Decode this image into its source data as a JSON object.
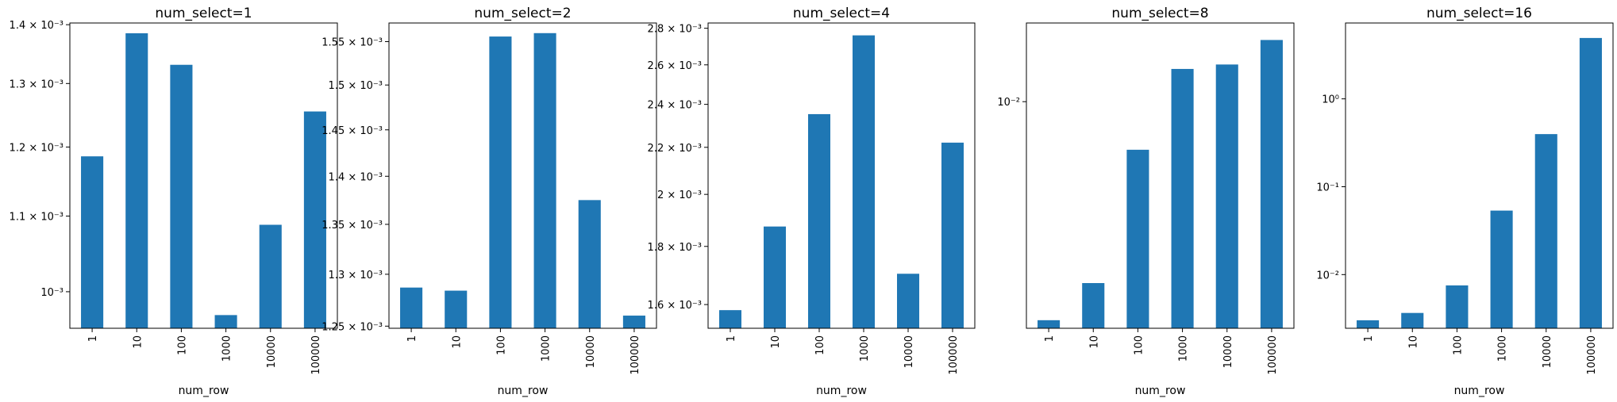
{
  "chart_data": [
    {
      "type": "bar",
      "title": "num_select=1",
      "xlabel": "num_row",
      "ylabel": "",
      "yscale": "log",
      "categories": [
        "1",
        "10",
        "100",
        "1000",
        "10000",
        "100000"
      ],
      "values": [
        0.001186,
        0.001385,
        0.001331,
        0.000971,
        0.001088,
        0.001255
      ],
      "ylim": [
        0.000955,
        0.001403
      ],
      "yticks": [
        {
          "value": 0.0011,
          "label": "1.1 × 10⁻³"
        },
        {
          "value": 0.0012,
          "label": "1.2 × 10⁻³"
        },
        {
          "value": 0.0013,
          "label": "1.3 × 10⁻³"
        },
        {
          "value": 0.0014,
          "label": "1.4 × 10⁻³"
        },
        {
          "value": 0.001,
          "label": "10⁻³"
        }
      ],
      "grid": false,
      "bar_color": "#1f77b4"
    },
    {
      "type": "bar",
      "title": "num_select=2",
      "xlabel": "num_row",
      "ylabel": "",
      "yscale": "log",
      "categories": [
        "1",
        "10",
        "100",
        "1000",
        "10000",
        "100000"
      ],
      "values": [
        0.001287,
        0.001284,
        0.001556,
        0.00156,
        0.001375,
        0.00126
      ],
      "ylim": [
        0.001248,
        0.001572
      ],
      "yticks": [
        {
          "value": 0.00125,
          "label": "1.25 × 10⁻³"
        },
        {
          "value": 0.0013,
          "label": "1.3 × 10⁻³"
        },
        {
          "value": 0.00135,
          "label": "1.35 × 10⁻³"
        },
        {
          "value": 0.0014,
          "label": "1.4 × 10⁻³"
        },
        {
          "value": 0.00145,
          "label": "1.45 × 10⁻³"
        },
        {
          "value": 0.0015,
          "label": "1.5 × 10⁻³"
        },
        {
          "value": 0.00155,
          "label": "1.55 × 10⁻³"
        }
      ],
      "grid": false,
      "bar_color": "#1f77b4"
    },
    {
      "type": "bar",
      "title": "num_select=4",
      "xlabel": "num_row",
      "ylabel": "",
      "yscale": "log",
      "categories": [
        "1",
        "10",
        "100",
        "1000",
        "10000",
        "100000"
      ],
      "values": [
        0.001582,
        0.001874,
        0.002353,
        0.00276,
        0.001703,
        0.002221
      ],
      "ylim": [
        0.001525,
        0.00283
      ],
      "yticks": [
        {
          "value": 0.0016,
          "label": "1.6 × 10⁻³"
        },
        {
          "value": 0.0018,
          "label": "1.8 × 10⁻³"
        },
        {
          "value": 0.002,
          "label": "2 × 10⁻³"
        },
        {
          "value": 0.0022,
          "label": "2.2 × 10⁻³"
        },
        {
          "value": 0.0024,
          "label": "2.4 × 10⁻³"
        },
        {
          "value": 0.0026,
          "label": "2.6 × 10⁻³"
        },
        {
          "value": 0.0028,
          "label": "2.8 × 10⁻³"
        }
      ],
      "grid": false,
      "bar_color": "#1f77b4"
    },
    {
      "type": "bar",
      "title": "num_select=8",
      "xlabel": "num_row",
      "ylabel": "",
      "yscale": "log",
      "categories": [
        "1",
        "10",
        "100",
        "1000",
        "10000",
        "100000"
      ],
      "values": [
        0.00296,
        0.00364,
        0.00765,
        0.012,
        0.0123,
        0.0141
      ],
      "ylim": [
        0.00283,
        0.0155
      ],
      "yticks": [
        {
          "value": 0.01,
          "label": "10⁻²"
        }
      ],
      "grid": false,
      "bar_color": "#1f77b4"
    },
    {
      "type": "bar",
      "title": "num_select=16",
      "xlabel": "num_row",
      "ylabel": "",
      "yscale": "log",
      "categories": [
        "1",
        "10",
        "100",
        "1000",
        "10000",
        "100000"
      ],
      "values": [
        0.00302,
        0.00366,
        0.00753,
        0.0535,
        0.397,
        4.93
      ],
      "ylim": [
        0.00245,
        7.3
      ],
      "yticks": [
        {
          "value": 0.01,
          "label": "10⁻²"
        },
        {
          "value": 0.1,
          "label": "10⁻¹"
        },
        {
          "value": 1,
          "label": "10⁰"
        }
      ],
      "grid": false,
      "bar_color": "#1f77b4"
    }
  ]
}
